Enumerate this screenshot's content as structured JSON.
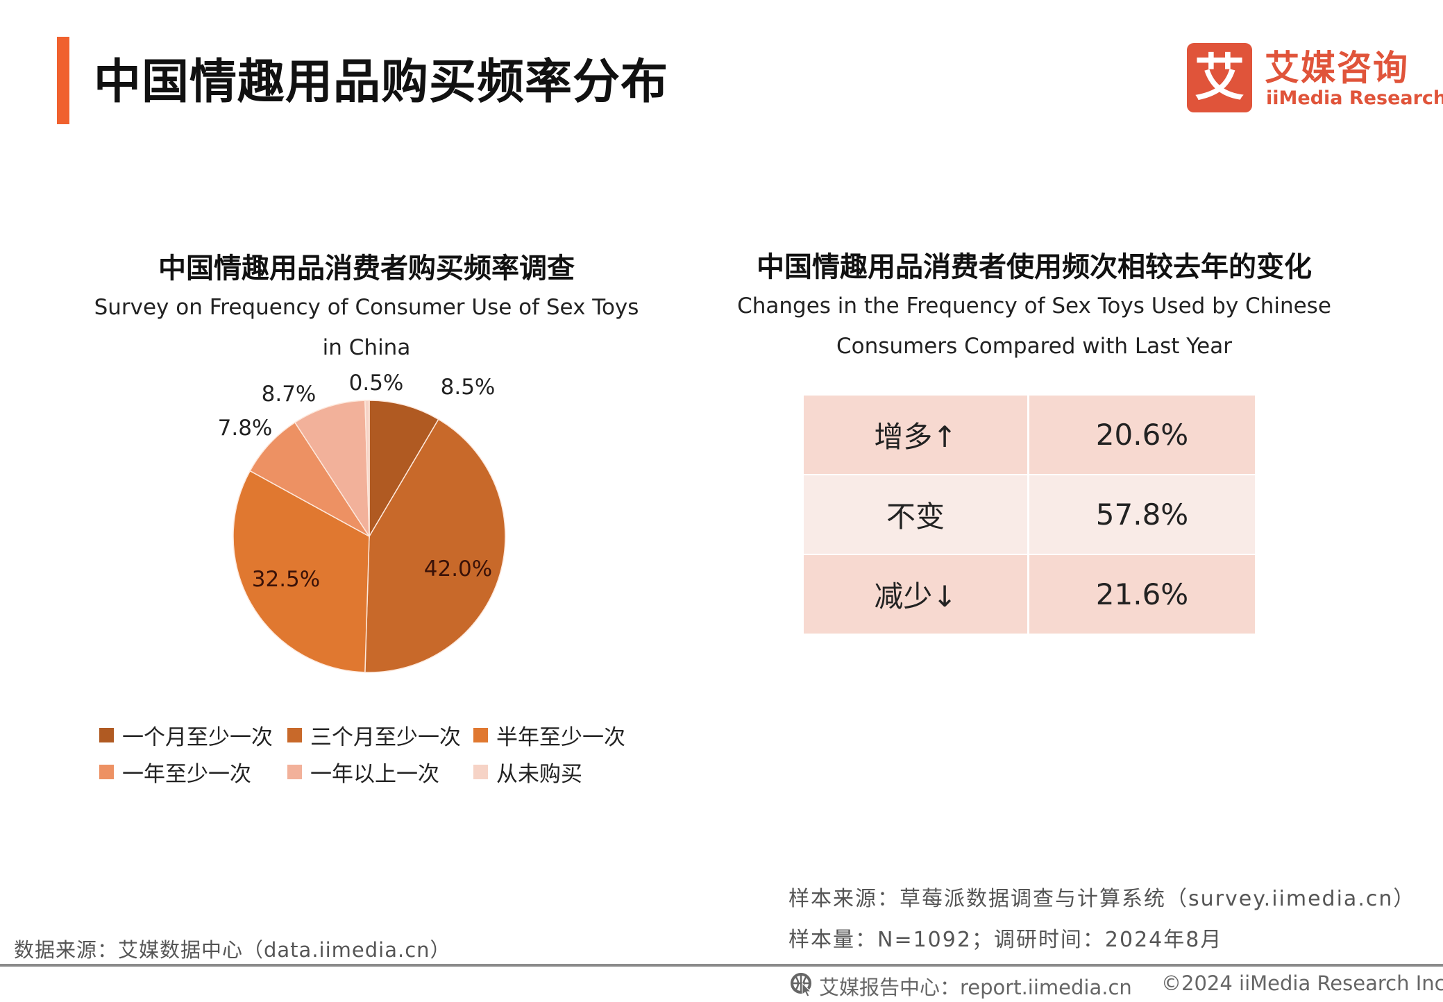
{
  "page": {
    "title": "中国情趣用品购买频率分布",
    "logo": {
      "cn": "艾媒咨询",
      "en": "iiMedia Research",
      "mark": "艾"
    }
  },
  "chart_data": [
    {
      "type": "pie",
      "title": "中国情趣用品消费者购买频率调查",
      "subtitle": "Survey on Frequency of Consumer Use of Sex Toys in China",
      "categories": [
        "一个月至少一次",
        "三个月至少一次",
        "半年至少一次",
        "一年至少一次",
        "一年以上一次",
        "从未购买"
      ],
      "values": [
        8.5,
        42.0,
        32.5,
        7.8,
        8.7,
        0.5
      ],
      "labels": [
        "8.5%",
        "42.0%",
        "32.5%",
        "7.8%",
        "8.7%",
        "0.5%"
      ],
      "colors": [
        "#b05a22",
        "#c8692a",
        "#e07830",
        "#ed9163",
        "#f2b19a",
        "#f6d3c6"
      ],
      "unit": "%",
      "legend_position": "bottom"
    },
    {
      "type": "table",
      "title": "中国情趣用品消费者使用频次相较去年的变化",
      "subtitle": "Changes in the Frequency of Sex Toys Used by Chinese Consumers Compared with Last Year",
      "rows": [
        {
          "label": "增多↑",
          "value": "20.6%",
          "color": "#f7d9d0"
        },
        {
          "label": "不变",
          "value": "57.8%",
          "color": "#f9ebe7"
        },
        {
          "label": "减少↓",
          "value": "21.6%",
          "color": "#f7d9d0"
        }
      ]
    }
  ],
  "notes": {
    "data_source": "数据来源：艾媒数据中心（data.iimedia.cn）",
    "sample_source": "样本来源：草莓派数据调查与计算系统（survey.iimedia.cn）",
    "sample_size": "样本量：N=1092；调研时间：2024年8月"
  },
  "footer": {
    "report_center": "艾媒报告中心：report.iimedia.cn",
    "copyright": "©2024  iiMedia Research Inc"
  }
}
